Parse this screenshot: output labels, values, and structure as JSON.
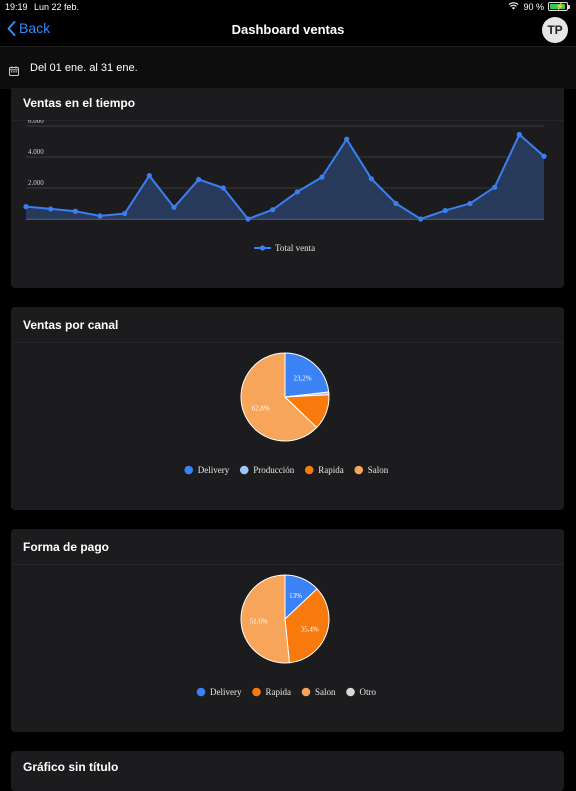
{
  "status_bar": {
    "time": "19:19",
    "date": "Lun 22 feb.",
    "battery": "90 %"
  },
  "nav": {
    "back_label": "Back",
    "title": "Dashboard ventas",
    "avatar_initials": "TP"
  },
  "date_range": "Del 01 ene. al 31 ene.",
  "colors": {
    "accent": "#2f8cff",
    "line": "#3a7ef0",
    "delivery": "#3b82f6",
    "produccion": "#9ec5f8",
    "rapida": "#f97a0c",
    "salon": "#f8a55c",
    "otro": "#d9d9d9"
  },
  "cards": [
    {
      "title": "Ventas en el tiempo"
    },
    {
      "title": "Ventas por canal"
    },
    {
      "title": "Forma de pago"
    },
    {
      "title": "Gráfico sin título"
    }
  ],
  "chart_data": [
    {
      "type": "area",
      "title": "Ventas en el tiempo",
      "series": [
        {
          "name": "Total venta",
          "values": [
            800,
            650,
            500,
            200,
            350,
            2800,
            750,
            2550,
            2000,
            0,
            600,
            1750,
            2700,
            5150,
            2600,
            1000,
            0,
            550,
            1000,
            2050,
            5450,
            4050
          ]
        }
      ],
      "yticks": [
        "2.000",
        "4.000",
        "6.000"
      ],
      "ylim": [
        0,
        6000
      ],
      "grid": true,
      "legend": "bottom"
    },
    {
      "type": "pie",
      "title": "Ventas por canal",
      "categories": [
        "Delivery",
        "Producción",
        "Rapida",
        "Salon"
      ],
      "values": [
        23.2,
        1.0,
        13.0,
        62.8
      ],
      "data_labels": [
        "23,2%",
        "",
        "",
        "62,8%"
      ],
      "legend": "bottom"
    },
    {
      "type": "pie",
      "title": "Forma de pago",
      "categories": [
        "Delivery",
        "Rapida",
        "Salon",
        "Otro"
      ],
      "values": [
        13.0,
        35.4,
        51.6,
        0
      ],
      "data_labels": [
        "13%",
        "35,4%",
        "51,6%",
        ""
      ],
      "legend": "bottom"
    }
  ]
}
